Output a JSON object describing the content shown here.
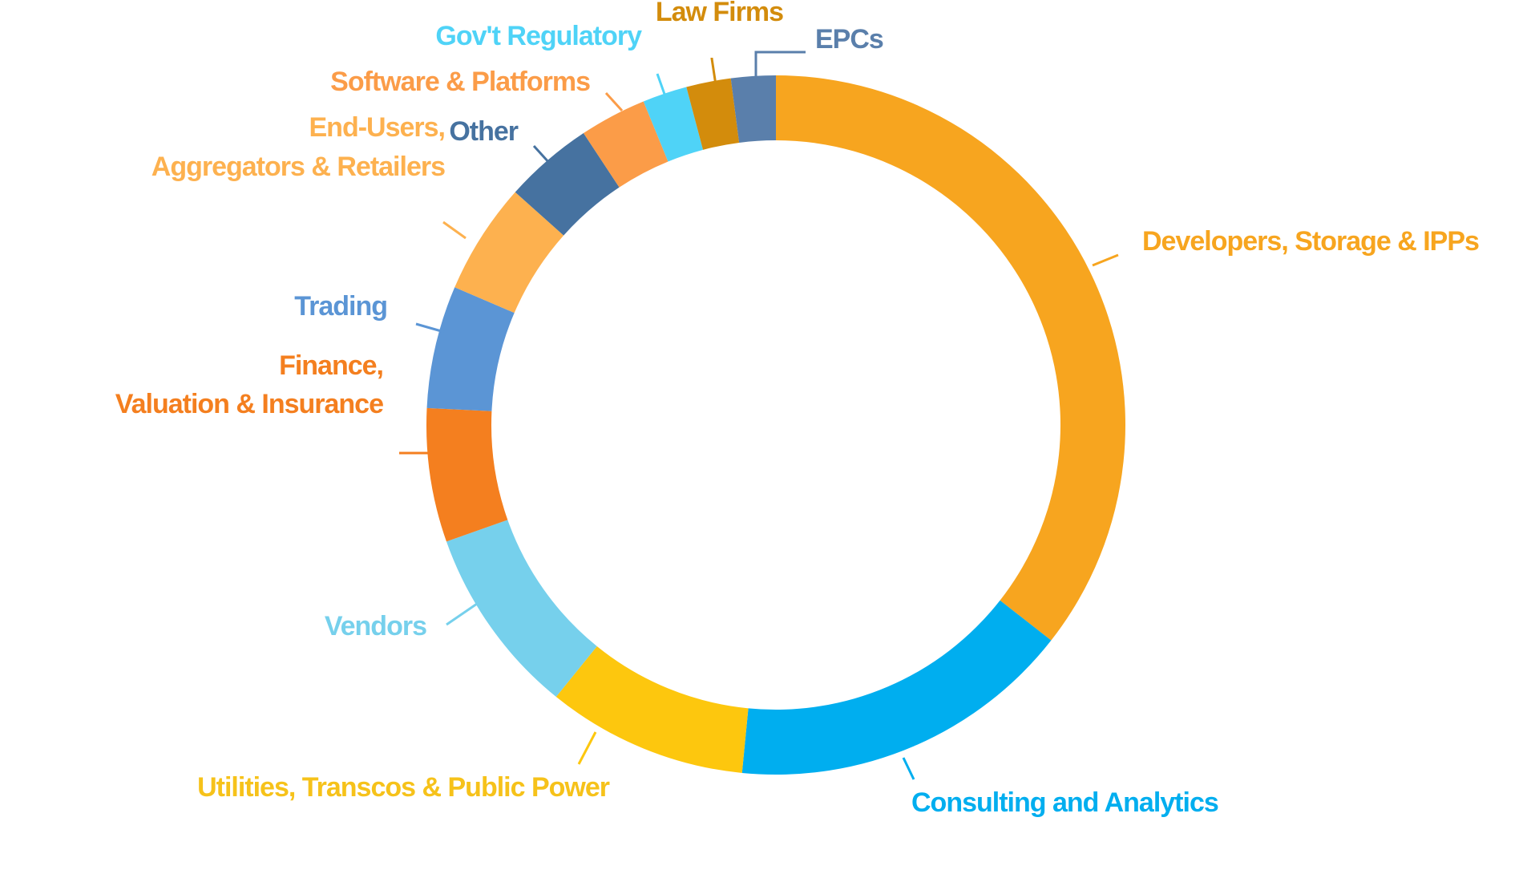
{
  "chart_data": {
    "type": "pie",
    "style": "donut",
    "title": "",
    "legend": "none",
    "value_unit": "percent",
    "slices": [
      {
        "label": "Developers, Storage & IPPs",
        "value": 34.5,
        "color": "#F7A51F"
      },
      {
        "label": "Consulting and Analytics",
        "value": 15.5,
        "color": "#00AEEF"
      },
      {
        "label": "Utilities, Transcos & Public Power",
        "value": 9.0,
        "color": "#FDC70E"
      },
      {
        "label": "Vendors",
        "value": 8.5,
        "color": "#76D0EC"
      },
      {
        "label": "Finance,\nValuation & Insurance",
        "value": 6.0,
        "color": "#F47F1F"
      },
      {
        "label": "Trading",
        "value": 5.5,
        "color": "#5B95D5"
      },
      {
        "label": "End-Users,\nAggregators & Retailers",
        "value": 5.0,
        "color": "#FDB14F"
      },
      {
        "label": "Other",
        "value": 4.0,
        "color": "#4672A0"
      },
      {
        "label": "Software & Platforms",
        "value": 3.0,
        "color": "#FB9C48"
      },
      {
        "label": "Gov't Regulatory",
        "value": 2.0,
        "color": "#4FD3F7"
      },
      {
        "label": "Law Firms",
        "value": 2.0,
        "color": "#D38C0C"
      },
      {
        "label": "EPCs",
        "value": 2.0,
        "color": "#5A7FAB"
      }
    ],
    "label_colors": [
      "#F7A51F",
      "#00AEEF",
      "#F6C21A",
      "#76D0EC",
      "#F47F1F",
      "#5B95D5",
      "#FDB14F",
      "#4672A0",
      "#FB9C48",
      "#4FD3F7",
      "#D38C0C",
      "#5A7FAB"
    ]
  }
}
